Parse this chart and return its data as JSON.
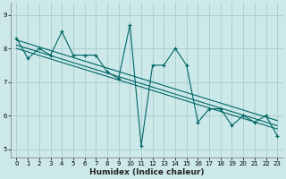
{
  "xlabel": "Humidex (Indice chaleur)",
  "bg_color": "#cce8e8",
  "line_color": "#006666",
  "grid_color": "#aacccc",
  "xlim": [
    -0.5,
    23.5
  ],
  "ylim": [
    4.75,
    9.35
  ],
  "xticks": [
    0,
    1,
    2,
    3,
    4,
    5,
    6,
    7,
    8,
    9,
    10,
    11,
    12,
    13,
    14,
    15,
    16,
    17,
    18,
    19,
    20,
    21,
    22,
    23
  ],
  "yticks": [
    5,
    6,
    7,
    8,
    9
  ],
  "series1_x": [
    0,
    1,
    2,
    3,
    4,
    5,
    6,
    7,
    8,
    9,
    10,
    11,
    12,
    13,
    14,
    15,
    16,
    17,
    18,
    19,
    20,
    21,
    22,
    23
  ],
  "series1_y": [
    8.3,
    7.7,
    8.0,
    7.8,
    8.5,
    7.8,
    7.8,
    7.8,
    7.3,
    7.1,
    8.7,
    5.1,
    7.5,
    7.5,
    8.0,
    7.5,
    5.8,
    6.2,
    6.2,
    5.7,
    6.0,
    5.8,
    6.0,
    5.4
  ],
  "trend1_x": [
    0,
    23
  ],
  "trend1_y": [
    8.25,
    5.85
  ],
  "trend2_x": [
    0,
    23
  ],
  "trend2_y": [
    8.1,
    5.7
  ],
  "trend3_x": [
    0,
    23
  ],
  "trend3_y": [
    8.0,
    5.6
  ]
}
